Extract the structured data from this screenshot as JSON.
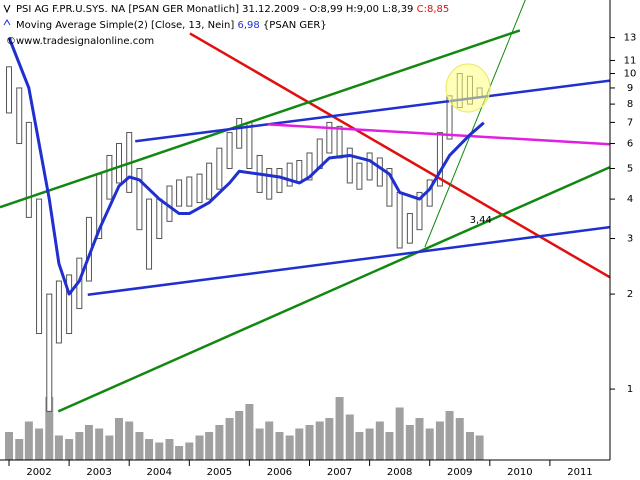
{
  "chart_data": {
    "type": "range",
    "header": {
      "line1": "PSI AG F.PR.U.SYS. NA [PSAN GER  Monatlich] 31.12.2009 - O:8,99 H:9,00 L:8,39",
      "line1_close": "C:8,85",
      "line2": "Moving Average Simple(2) [Close, 13, Nein]",
      "line2_value": "6,98",
      "line2_suffix": "{PSAN GER}",
      "line3": "www.tradesignalonline.com"
    },
    "log_scale": true,
    "xlim": [
      2001.85,
      2012.0
    ],
    "xticks": [
      2002,
      2003,
      2004,
      2005,
      2006,
      2007,
      2008,
      2009,
      2010,
      2011
    ],
    "ylim": [
      0.596,
      17.1
    ],
    "yticks": [
      1,
      2,
      3,
      4,
      5,
      6,
      7,
      8,
      9,
      10,
      11,
      13
    ],
    "x": [
      2002.0,
      2002.17,
      2002.33,
      2002.5,
      2002.67,
      2002.83,
      2003.0,
      2003.17,
      2003.33,
      2003.5,
      2003.67,
      2003.83,
      2004.0,
      2004.17,
      2004.33,
      2004.5,
      2004.67,
      2004.83,
      2005.0,
      2005.17,
      2005.33,
      2005.5,
      2005.67,
      2005.83,
      2006.0,
      2006.17,
      2006.33,
      2006.5,
      2006.67,
      2006.83,
      2007.0,
      2007.17,
      2007.33,
      2007.5,
      2007.67,
      2007.83,
      2008.0,
      2008.17,
      2008.33,
      2008.5,
      2008.67,
      2008.83,
      2009.0,
      2009.17,
      2009.33,
      2009.5,
      2009.67,
      2009.83
    ],
    "low": [
      7.5,
      6,
      3.5,
      1.5,
      0.85,
      1.4,
      1.5,
      1.8,
      2.2,
      3,
      4,
      4.5,
      4.2,
      3.2,
      2.4,
      3,
      3.4,
      3.8,
      3.8,
      3.9,
      4,
      4.3,
      5,
      5.8,
      5,
      4.2,
      4,
      4.2,
      4.4,
      4.5,
      4.6,
      5,
      5.6,
      5.4,
      4.5,
      4.3,
      4.6,
      4.4,
      3.8,
      2.8,
      2.9,
      3.2,
      3.8,
      4.4,
      6.2,
      7.8,
      8,
      8.39
    ],
    "high": [
      10.5,
      9,
      7,
      4,
      2,
      2.2,
      2.3,
      2.6,
      3.5,
      4.8,
      5.5,
      6,
      6.5,
      5,
      4,
      4,
      4.4,
      4.6,
      4.7,
      4.8,
      5.2,
      5.8,
      6.5,
      7.2,
      7,
      5.5,
      5,
      5,
      5.2,
      5.3,
      5.6,
      6.2,
      7,
      6.8,
      5.8,
      5.2,
      5.6,
      5.4,
      5,
      4.2,
      3.6,
      4.2,
      4.6,
      6.5,
      8.5,
      10,
      9.8,
      9
    ],
    "bar_color": "#555555",
    "volume": [
      40,
      30,
      55,
      45,
      90,
      35,
      30,
      40,
      50,
      45,
      35,
      60,
      55,
      40,
      30,
      25,
      30,
      20,
      25,
      35,
      40,
      50,
      60,
      70,
      80,
      45,
      55,
      40,
      35,
      45,
      50,
      55,
      60,
      90,
      65,
      40,
      45,
      55,
      40,
      75,
      50,
      60,
      45,
      55,
      70,
      60,
      40,
      35
    ],
    "y2lim": [
      0,
      100
    ],
    "volume_color": "#a0a0a0",
    "ma": {
      "color": "#1f2fd0",
      "x": [
        2002.0,
        2002.33,
        2002.67,
        2002.83,
        2003.0,
        2003.17,
        2003.5,
        2003.83,
        2004.0,
        2004.17,
        2004.5,
        2004.83,
        2005.0,
        2005.33,
        2005.67,
        2005.83,
        2006.17,
        2006.5,
        2006.83,
        2007.0,
        2007.33,
        2007.67,
        2008.0,
        2008.33,
        2008.5,
        2008.83,
        2009.0,
        2009.33,
        2009.67,
        2009.9
      ],
      "values": [
        13,
        9,
        4,
        2.5,
        2.0,
        2.2,
        3.2,
        4.4,
        4.7,
        4.6,
        4.0,
        3.6,
        3.6,
        3.9,
        4.5,
        4.9,
        4.8,
        4.7,
        4.5,
        4.7,
        5.4,
        5.5,
        5.3,
        4.8,
        4.2,
        4.0,
        4.3,
        5.5,
        6.4,
        6.98
      ]
    },
    "trendlines": [
      {
        "color": "#e01010",
        "x": [
          2005.01,
          2012.0
        ],
        "values": [
          13.4,
          2.26
        ]
      },
      {
        "color": "#118811",
        "x": [
          2001.85,
          2010.5
        ],
        "values": [
          3.77,
          13.7
        ]
      },
      {
        "color": "#118811",
        "x": [
          2002.82,
          2012.0
        ],
        "values": [
          0.85,
          5.05
        ]
      },
      {
        "color": "#1f2fd0",
        "x": [
          2004.1,
          2012.0
        ],
        "values": [
          6.1,
          9.5
        ]
      },
      {
        "color": "#1f2fd0",
        "x": [
          2003.31,
          2012.0
        ],
        "values": [
          1.99,
          3.26
        ]
      },
      {
        "color": "#e020e0",
        "x": [
          2006.31,
          2012.0
        ],
        "values": [
          6.9,
          5.97
        ]
      },
      {
        "color": "#118811",
        "x": [
          2008.92,
          2010.59
        ],
        "values": [
          2.82,
          17.1
        ]
      }
    ],
    "annotation": {
      "text": "3,44",
      "x": 2009.85,
      "value": 3.44
    }
  }
}
